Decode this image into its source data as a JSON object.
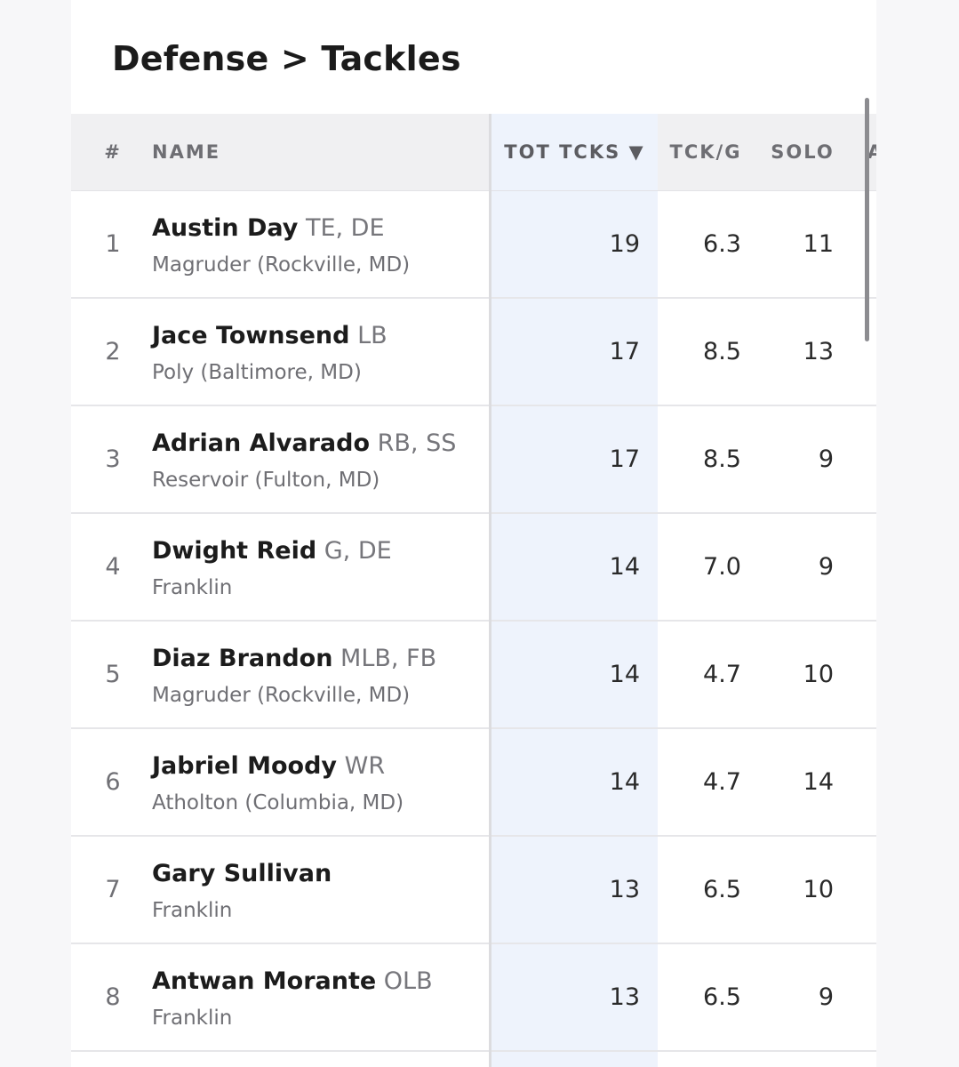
{
  "page": {
    "title": "Defense > Tackles"
  },
  "table": {
    "columns": {
      "rank": "#",
      "name": "NAME",
      "tot": "TOT TCKS ▼",
      "tckg": "TCK/G",
      "solo": "SOLO",
      "partial": "A"
    },
    "rows": [
      {
        "rank": "1",
        "name": "Austin Day",
        "pos": "TE, DE",
        "school": "Magruder (Rockville, MD)",
        "tot": "19",
        "tckg": "6.3",
        "solo": "11"
      },
      {
        "rank": "2",
        "name": "Jace Townsend",
        "pos": "LB",
        "school": "Poly (Baltimore, MD)",
        "tot": "17",
        "tckg": "8.5",
        "solo": "13"
      },
      {
        "rank": "3",
        "name": "Adrian Alvarado",
        "pos": "RB, SS",
        "school": "Reservoir (Fulton, MD)",
        "tot": "17",
        "tckg": "8.5",
        "solo": "9"
      },
      {
        "rank": "4",
        "name": "Dwight Reid",
        "pos": "G, DE",
        "school": "Franklin",
        "tot": "14",
        "tckg": "7.0",
        "solo": "9"
      },
      {
        "rank": "5",
        "name": "Diaz Brandon",
        "pos": "MLB, FB",
        "school": "Magruder (Rockville, MD)",
        "tot": "14",
        "tckg": "4.7",
        "solo": "10"
      },
      {
        "rank": "6",
        "name": "Jabriel Moody",
        "pos": "WR",
        "school": "Atholton (Columbia, MD)",
        "tot": "14",
        "tckg": "4.7",
        "solo": "14"
      },
      {
        "rank": "7",
        "name": "Gary Sullivan",
        "pos": "",
        "school": "Franklin",
        "tot": "13",
        "tckg": "6.5",
        "solo": "10"
      },
      {
        "rank": "8",
        "name": "Antwan Morante",
        "pos": "OLB",
        "school": "Franklin",
        "tot": "13",
        "tckg": "6.5",
        "solo": "9"
      }
    ]
  },
  "colors": {
    "sorted_column_bg": "#eef3fc",
    "header_bg": "#f0f0f2"
  }
}
